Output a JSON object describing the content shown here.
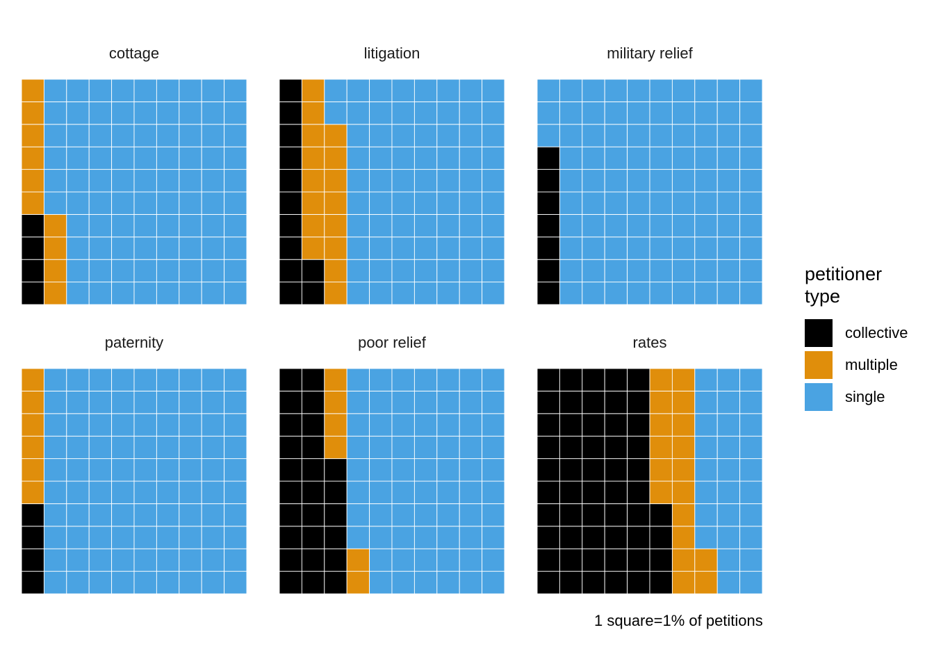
{
  "chart_data": {
    "type": "waffle",
    "grid": {
      "rows": 10,
      "cols": 10
    },
    "caption": "1 square=1% of petitions",
    "legend": {
      "title": [
        "petitioner",
        "type"
      ],
      "placement": "right",
      "items": [
        {
          "key": "collective",
          "label": "collective",
          "color": "#000000"
        },
        {
          "key": "multiple",
          "label": "multiple",
          "color": "#E08E0B"
        },
        {
          "key": "single",
          "label": "single",
          "color": "#4AA3E2"
        }
      ]
    },
    "panels": [
      {
        "title": "cottage",
        "collective": 4,
        "multiple": 10,
        "single": 86
      },
      {
        "title": "litigation",
        "collective": 12,
        "multiple": 16,
        "single": 72
      },
      {
        "title": "military relief",
        "collective": 7,
        "multiple": 0,
        "single": 93
      },
      {
        "title": "paternity",
        "collective": 4,
        "multiple": 6,
        "single": 90
      },
      {
        "title": "poor relief",
        "collective": 26,
        "multiple": 6,
        "single": 68
      },
      {
        "title": "rates",
        "collective": 54,
        "multiple": 18,
        "single": 28
      }
    ]
  }
}
